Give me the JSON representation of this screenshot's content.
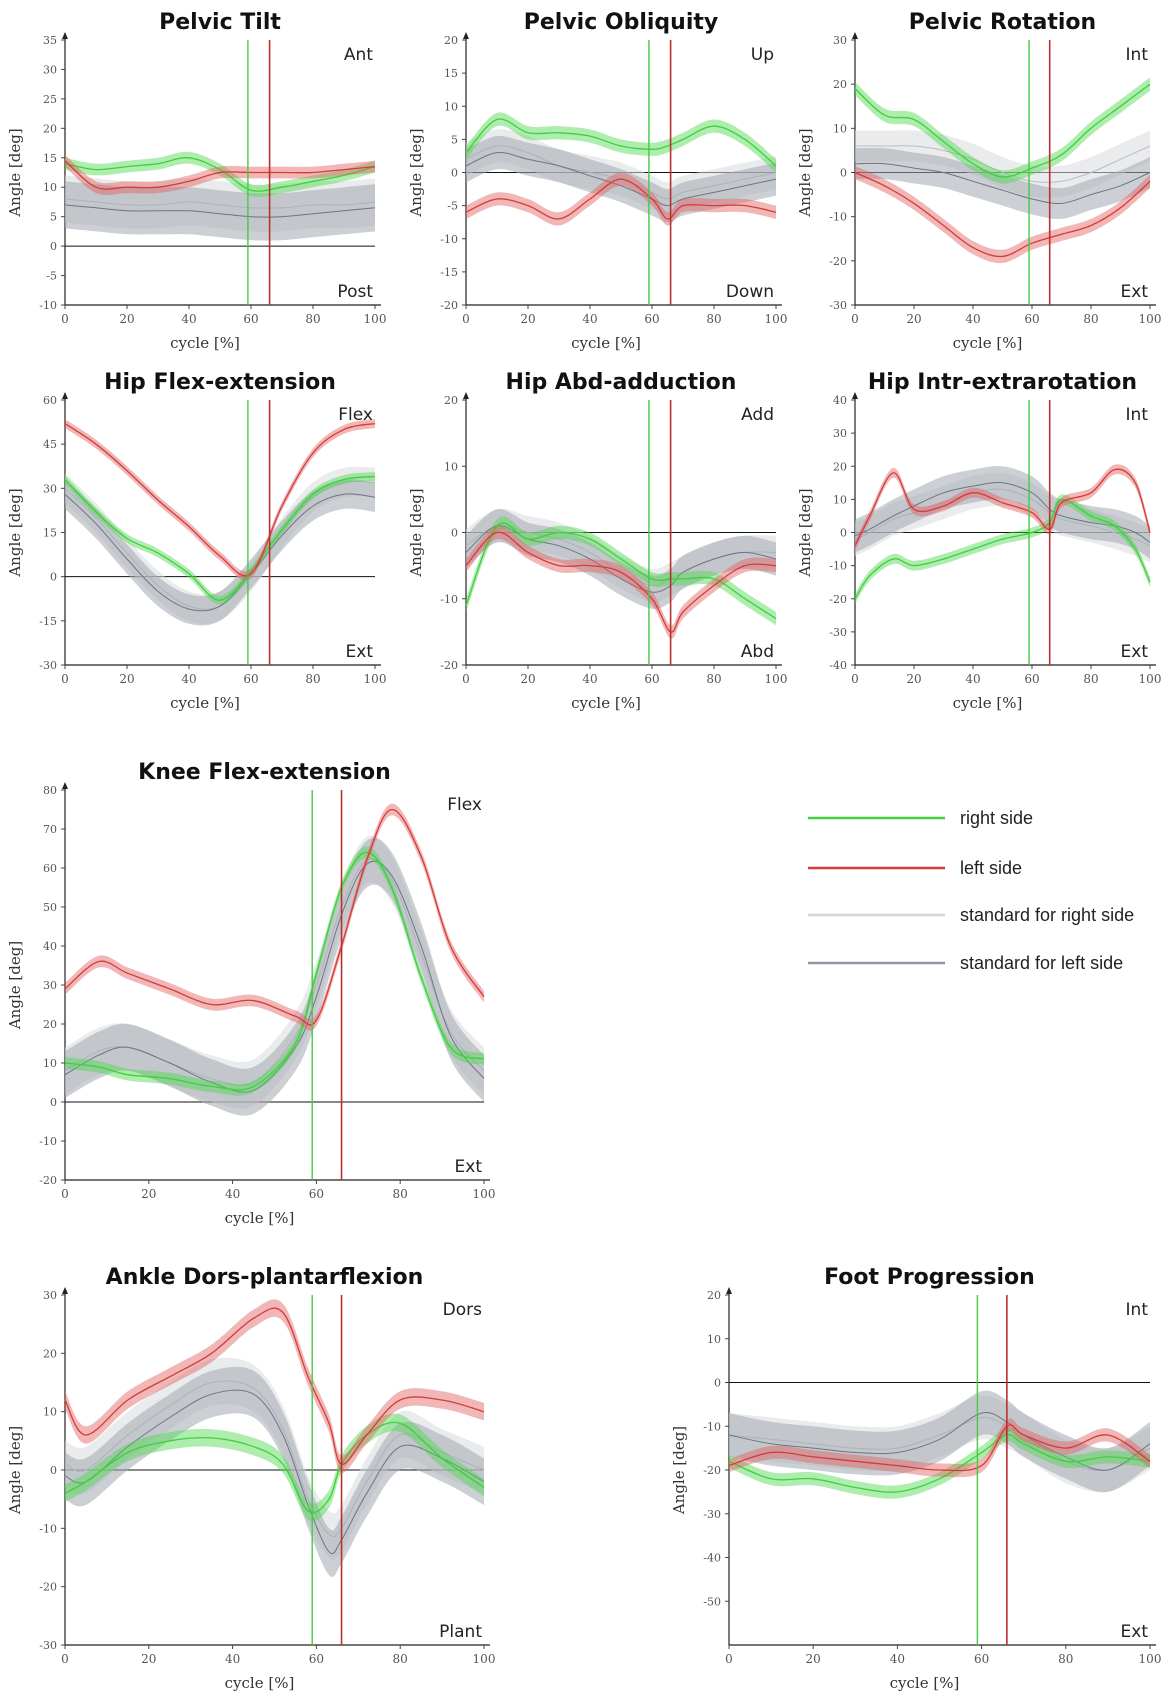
{
  "colors": {
    "right": "#3fcf3f",
    "left": "#d63a3a",
    "standard_right": "#d4d6da",
    "standard_left": "#8f96a2",
    "right_band": "#4cd84c",
    "left_band": "#e06060",
    "standard_right_band": "#d8dadd",
    "standard_left_band": "#a3a9b3",
    "right_marker": "#46c946",
    "left_marker": "#b83030",
    "zero_line": "#111111"
  },
  "legend": {
    "right": "right side",
    "left": "left side",
    "standard_right": "standard for right side",
    "standard_left": "standard for left side"
  },
  "chart_data": [
    {
      "id": "pelvic-tilt",
      "type": "line",
      "title": "Pelvic Tilt",
      "xlabel": "cycle [%]",
      "ylabel": "Angle [deg]",
      "top_label": "Ant",
      "bottom_label": "Post",
      "xlim": [
        0,
        100
      ],
      "ylim": [
        -10,
        35
      ],
      "xticks": [
        0,
        20,
        40,
        60,
        80,
        100
      ],
      "yticks": [
        -10,
        -5,
        0,
        5,
        10,
        15,
        20,
        25,
        30,
        35
      ],
      "x": [
        0,
        10,
        20,
        30,
        40,
        50,
        60,
        70,
        80,
        90,
        100
      ],
      "right_toe_off": 59,
      "left_toe_off": 66,
      "series": [
        {
          "name": "right side",
          "key": "right",
          "band": 1.0,
          "values": [
            14,
            13,
            13.5,
            14,
            15,
            13,
            9.5,
            10,
            11,
            12,
            13.5
          ]
        },
        {
          "name": "left side",
          "key": "left",
          "band": 1.0,
          "values": [
            14.5,
            10,
            10,
            10,
            11,
            12.5,
            12.5,
            12.5,
            12.5,
            13,
            13.5
          ]
        },
        {
          "name": "standard for right side",
          "key": "standard_right",
          "band": 4.0,
          "values": [
            8,
            7.5,
            7,
            7,
            7.5,
            7,
            6.5,
            6.5,
            7,
            7,
            7.5
          ]
        },
        {
          "name": "standard for left side",
          "key": "standard_left",
          "band": 4.0,
          "values": [
            7,
            6.5,
            6,
            6,
            6,
            5.5,
            5,
            5,
            5.5,
            6,
            6.5
          ]
        }
      ]
    },
    {
      "id": "pelvic-obliquity",
      "type": "line",
      "title": "Pelvic Obliquity",
      "xlabel": "cycle [%]",
      "ylabel": "Angle [deg]",
      "top_label": "Up",
      "bottom_label": "Down",
      "xlim": [
        0,
        100
      ],
      "ylim": [
        -20,
        20
      ],
      "xticks": [
        0,
        20,
        40,
        60,
        80,
        100
      ],
      "yticks": [
        -20,
        -15,
        -10,
        -5,
        0,
        5,
        10,
        15,
        20
      ],
      "x": [
        0,
        10,
        20,
        30,
        40,
        50,
        60,
        65,
        70,
        80,
        90,
        100
      ],
      "right_toe_off": 59,
      "left_toe_off": 66,
      "series": [
        {
          "name": "right side",
          "key": "right",
          "band": 1.0,
          "values": [
            3,
            8,
            6,
            6,
            5.5,
            4,
            3.5,
            4,
            5,
            7,
            5,
            1
          ]
        },
        {
          "name": "left side",
          "key": "left",
          "band": 1.0,
          "values": [
            -6,
            -4,
            -5,
            -7,
            -4,
            -1,
            -4,
            -7,
            -5,
            -5,
            -5,
            -6
          ]
        },
        {
          "name": "standard for right side",
          "key": "standard_right",
          "band": 2.5,
          "values": [
            2,
            4,
            3,
            1,
            0,
            -1,
            -3,
            -4,
            -3,
            -2,
            -1,
            0
          ]
        },
        {
          "name": "standard for left side",
          "key": "standard_left",
          "band": 2.5,
          "values": [
            1,
            3,
            2,
            1,
            -0.5,
            -2,
            -4,
            -5,
            -4,
            -3,
            -2,
            -1
          ]
        }
      ]
    },
    {
      "id": "pelvic-rotation",
      "type": "line",
      "title": "Pelvic Rotation",
      "xlabel": "cycle [%]",
      "ylabel": "Angle [deg]",
      "top_label": "Int",
      "bottom_label": "Ext",
      "xlim": [
        0,
        100
      ],
      "ylim": [
        -30,
        30
      ],
      "xticks": [
        0,
        20,
        40,
        60,
        80,
        100
      ],
      "yticks": [
        -30,
        -20,
        -10,
        0,
        10,
        20,
        30
      ],
      "x": [
        0,
        10,
        20,
        30,
        40,
        50,
        60,
        70,
        80,
        90,
        100
      ],
      "right_toe_off": 59,
      "left_toe_off": 66,
      "series": [
        {
          "name": "right side",
          "key": "right",
          "band": 1.5,
          "values": [
            19,
            13,
            12,
            7,
            2,
            -1,
            1,
            4,
            10,
            15,
            20
          ]
        },
        {
          "name": "left side",
          "key": "left",
          "band": 1.5,
          "values": [
            0,
            -3,
            -7,
            -12,
            -17,
            -19,
            -16,
            -14,
            -12,
            -8,
            -2
          ]
        },
        {
          "name": "standard for right side",
          "key": "standard_right",
          "band": 3.5,
          "values": [
            6,
            6,
            6,
            5,
            3,
            0,
            -2,
            -2,
            0,
            3,
            6
          ]
        },
        {
          "name": "standard for left side",
          "key": "standard_left",
          "band": 3.5,
          "values": [
            2,
            2,
            1,
            0,
            -2,
            -4,
            -6,
            -7,
            -5,
            -3,
            0
          ]
        }
      ]
    },
    {
      "id": "hip-flex-extension",
      "type": "line",
      "title": "Hip Flex-extension",
      "xlabel": "cycle [%]",
      "ylabel": "Angle [deg]",
      "top_label": "Flex",
      "bottom_label": "Ext",
      "xlim": [
        0,
        100
      ],
      "ylim": [
        -30,
        60
      ],
      "xticks": [
        0,
        20,
        40,
        60,
        80,
        100
      ],
      "yticks": [
        -30,
        -15,
        0,
        15,
        30,
        45,
        60
      ],
      "x": [
        0,
        10,
        20,
        30,
        40,
        50,
        60,
        70,
        80,
        90,
        100
      ],
      "right_toe_off": 59,
      "left_toe_off": 66,
      "series": [
        {
          "name": "right side",
          "key": "right",
          "band": 1.5,
          "values": [
            33,
            22,
            13,
            8,
            1,
            -8,
            2,
            16,
            28,
            33,
            34
          ]
        },
        {
          "name": "left side",
          "key": "left",
          "band": 1.5,
          "values": [
            52,
            45,
            36,
            26,
            17,
            7,
            1,
            24,
            42,
            50,
            52
          ]
        },
        {
          "name": "standard for right side",
          "key": "standard_right",
          "band": 5.0,
          "values": [
            30,
            20,
            8,
            -3,
            -10,
            -10,
            0,
            15,
            27,
            32,
            32
          ]
        },
        {
          "name": "standard for left side",
          "key": "standard_left",
          "band": 5.0,
          "values": [
            28,
            18,
            6,
            -5,
            -11,
            -10,
            1,
            14,
            24,
            28,
            27
          ]
        }
      ]
    },
    {
      "id": "hip-abd-adduction",
      "type": "line",
      "title": "Hip Abd-adduction",
      "xlabel": "cycle [%]",
      "ylabel": "Angle [deg]",
      "top_label": "Add",
      "bottom_label": "Abd",
      "xlim": [
        0,
        100
      ],
      "ylim": [
        -20,
        20
      ],
      "xticks": [
        0,
        20,
        40,
        60,
        80,
        100
      ],
      "yticks": [
        -20,
        -10,
        0,
        10,
        20
      ],
      "x": [
        0,
        10,
        20,
        30,
        40,
        50,
        60,
        66,
        70,
        80,
        90,
        100
      ],
      "right_toe_off": 59,
      "left_toe_off": 66,
      "series": [
        {
          "name": "right side",
          "key": "right",
          "band": 1.0,
          "values": [
            -11,
            1,
            -1,
            0,
            -1,
            -4,
            -7,
            -7,
            -7,
            -7,
            -10,
            -13
          ]
        },
        {
          "name": "left side",
          "key": "left",
          "band": 1.0,
          "values": [
            -5,
            0,
            -3,
            -5,
            -5,
            -6,
            -10,
            -15,
            -12,
            -8,
            -5,
            -5
          ]
        },
        {
          "name": "standard for right side",
          "key": "standard_right",
          "band": 2.5,
          "values": [
            -2,
            1,
            0,
            -1,
            -3,
            -6,
            -8,
            -7,
            -6,
            -4,
            -3,
            -3
          ]
        },
        {
          "name": "standard for left side",
          "key": "standard_left",
          "band": 2.5,
          "values": [
            -3,
            1,
            -1,
            -2,
            -4,
            -7,
            -9,
            -8,
            -6,
            -4,
            -3,
            -4
          ]
        }
      ]
    },
    {
      "id": "hip-intr-extrarotation",
      "type": "line",
      "title": "Hip Intr-extrarotation",
      "xlabel": "cycle [%]",
      "ylabel": "Angle [deg]",
      "top_label": "Int",
      "bottom_label": "Ext",
      "xlim": [
        0,
        100
      ],
      "ylim": [
        -40,
        40
      ],
      "xticks": [
        0,
        20,
        40,
        60,
        80,
        100
      ],
      "yticks": [
        -40,
        -30,
        -20,
        -10,
        0,
        10,
        20,
        30,
        40
      ],
      "x": [
        0,
        5,
        13,
        20,
        30,
        40,
        50,
        60,
        66,
        70,
        80,
        88,
        95,
        100
      ],
      "right_toe_off": 59,
      "left_toe_off": 66,
      "series": [
        {
          "name": "right side",
          "key": "right",
          "band": 1.5,
          "values": [
            -20,
            -13,
            -8,
            -10,
            -8,
            -5,
            -2,
            0,
            3,
            10,
            5,
            2,
            -5,
            -15
          ]
        },
        {
          "name": "left side",
          "key": "left",
          "band": 1.5,
          "values": [
            -4,
            5,
            18,
            7,
            8,
            12,
            9,
            6,
            1,
            9,
            12,
            19,
            15,
            0
          ]
        },
        {
          "name": "standard for right side",
          "key": "standard_right",
          "band": 5.0,
          "values": [
            -2,
            0,
            4,
            6,
            9,
            12,
            13,
            10,
            6,
            4,
            2,
            0,
            -2,
            -4
          ]
        },
        {
          "name": "standard for left side",
          "key": "standard_left",
          "band": 5.0,
          "values": [
            -1,
            1,
            5,
            8,
            12,
            14,
            15,
            12,
            7,
            5,
            3,
            2,
            0,
            -3
          ]
        }
      ]
    },
    {
      "id": "knee-flex-extension",
      "type": "line",
      "title": "Knee Flex-extension",
      "xlabel": "cycle [%]",
      "ylabel": "Angle [deg]",
      "top_label": "Flex",
      "bottom_label": "Ext",
      "xlim": [
        0,
        100
      ],
      "ylim": [
        -20,
        80
      ],
      "xticks": [
        0,
        20,
        40,
        60,
        80,
        100
      ],
      "yticks": [
        -20,
        -10,
        0,
        10,
        20,
        30,
        40,
        50,
        60,
        70,
        80
      ],
      "x": [
        0,
        8,
        15,
        25,
        35,
        45,
        55,
        60,
        66,
        72,
        78,
        85,
        92,
        100
      ],
      "right_toe_off": 59,
      "left_toe_off": 66,
      "series": [
        {
          "name": "right side",
          "key": "right",
          "band": 1.5,
          "values": [
            10,
            9,
            7,
            6,
            4,
            4,
            15,
            33,
            55,
            64,
            55,
            32,
            14,
            11
          ]
        },
        {
          "name": "left side",
          "key": "left",
          "band": 1.5,
          "values": [
            29,
            36,
            33,
            29,
            25,
            26,
            22,
            21,
            40,
            62,
            75,
            63,
            40,
            27
          ]
        },
        {
          "name": "standard for right side",
          "key": "standard_right",
          "band": 6.0,
          "values": [
            8,
            13,
            14,
            10,
            6,
            5,
            17,
            30,
            50,
            62,
            57,
            38,
            18,
            8
          ]
        },
        {
          "name": "standard for left side",
          "key": "standard_left",
          "band": 6.0,
          "values": [
            7,
            12,
            14,
            10,
            5,
            3,
            14,
            27,
            48,
            61,
            58,
            40,
            17,
            6
          ]
        }
      ]
    },
    {
      "id": "ankle-dors-plantarflexion",
      "type": "line",
      "title": "Ankle Dors-plantarflexion",
      "xlabel": "cycle [%]",
      "ylabel": "Angle [deg]",
      "top_label": "Dors",
      "bottom_label": "Plant",
      "xlim": [
        0,
        100
      ],
      "ylim": [
        -30,
        30
      ],
      "xticks": [
        0,
        20,
        40,
        60,
        80,
        100
      ],
      "yticks": [
        -30,
        -20,
        -10,
        0,
        10,
        20,
        30
      ],
      "x": [
        0,
        5,
        15,
        25,
        35,
        45,
        52,
        58,
        63,
        66,
        72,
        80,
        90,
        100
      ],
      "right_toe_off": 59,
      "left_toe_off": 66,
      "series": [
        {
          "name": "right side",
          "key": "right",
          "band": 1.5,
          "values": [
            -4,
            -2,
            3,
            5,
            5.5,
            4,
            1,
            -7,
            -5,
            1,
            6,
            8,
            2,
            -3
          ]
        },
        {
          "name": "left side",
          "key": "left",
          "band": 1.5,
          "values": [
            12,
            6,
            12,
            16,
            20,
            26,
            27,
            16,
            8,
            1,
            6,
            12,
            12,
            10
          ]
        },
        {
          "name": "standard for right side",
          "key": "standard_right",
          "band": 4.0,
          "values": [
            1,
            0,
            6,
            11,
            15,
            14,
            7,
            -5,
            -11,
            -10,
            -2,
            6,
            3,
            0
          ]
        },
        {
          "name": "standard for left side",
          "key": "standard_left",
          "band": 4.0,
          "values": [
            -1,
            -2,
            4,
            9,
            13,
            13,
            6,
            -6,
            -14,
            -12,
            -4,
            4,
            2,
            -2
          ]
        }
      ]
    },
    {
      "id": "foot-progression",
      "type": "line",
      "title": "Foot Progression",
      "xlabel": "cycle [%]",
      "ylabel": "Angle [deg]",
      "top_label": "Int",
      "bottom_label": "Ext",
      "xlim": [
        0,
        100
      ],
      "ylim": [
        -60,
        20
      ],
      "xticks": [
        0,
        20,
        40,
        60,
        80,
        100
      ],
      "yticks": [
        -50,
        -40,
        -30,
        -20,
        -10,
        0,
        10,
        20
      ],
      "x": [
        0,
        10,
        20,
        30,
        40,
        50,
        60,
        66,
        70,
        80,
        90,
        100
      ],
      "right_toe_off": 59,
      "left_toe_off": 66,
      "series": [
        {
          "name": "right side",
          "key": "right",
          "band": 1.5,
          "values": [
            -18,
            -22,
            -22,
            -24,
            -25,
            -22,
            -16,
            -12,
            -14,
            -18,
            -17,
            -18
          ]
        },
        {
          "name": "left side",
          "key": "left",
          "band": 1.5,
          "values": [
            -19,
            -16,
            -17,
            -18,
            -19,
            -20,
            -19,
            -10,
            -12,
            -15,
            -12,
            -18
          ]
        },
        {
          "name": "standard for right side",
          "key": "standard_right",
          "band": 5.0,
          "values": [
            -12,
            -13,
            -14,
            -15,
            -15,
            -12,
            -8,
            -10,
            -12,
            -18,
            -20,
            -15
          ]
        },
        {
          "name": "standard for left side",
          "key": "standard_left",
          "band": 5.0,
          "values": [
            -12,
            -14,
            -15,
            -16,
            -16,
            -13,
            -7,
            -9,
            -12,
            -17,
            -20,
            -14
          ]
        }
      ]
    }
  ]
}
